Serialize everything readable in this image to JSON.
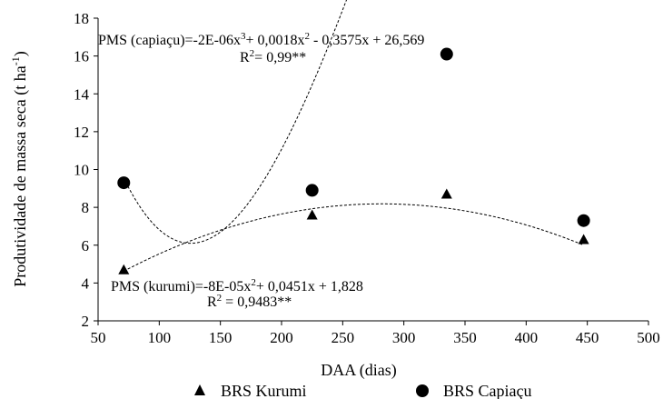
{
  "chart_data": {
    "type": "scatter",
    "xlabel": "DAA (dias)",
    "ylabel": "Produtividade de massa seca (t ha",
    "ylabel_sup": "-1",
    "ylabel_end": ")",
    "xlim": [
      50,
      500
    ],
    "ylim": [
      2,
      18
    ],
    "xticks": [
      50,
      100,
      150,
      200,
      250,
      300,
      350,
      400,
      450,
      500
    ],
    "yticks": [
      2,
      4,
      6,
      8,
      10,
      12,
      14,
      16,
      18
    ],
    "grid": false,
    "legend_position": "bottom",
    "series": [
      {
        "name": "BRS Kurumi",
        "marker": "triangle",
        "x": [
          71,
          225,
          335,
          447
        ],
        "y": [
          4.7,
          7.6,
          8.7,
          6.3
        ],
        "trend": {
          "type": "poly",
          "coef": [
            1.828,
            0.0451,
            -8e-05
          ]
        },
        "equation_parts": [
          "PMS (kurumi)=-8E-05x",
          "2",
          "+ 0,0451x + 1,828"
        ],
        "r2_parts": [
          "R",
          "2",
          " = 0,9483**"
        ]
      },
      {
        "name": "BRS Capiaçu",
        "marker": "circle",
        "x": [
          71,
          225,
          335,
          447
        ],
        "y": [
          9.3,
          8.9,
          16.1,
          7.3
        ],
        "trend": {
          "type": "poly",
          "coef": [
            26.569,
            -0.3575,
            0.0018,
            -2e-06
          ]
        },
        "equation_parts": [
          "PMS (capiaçu)=-2E-06x",
          "3",
          "+ 0,0018x",
          "2",
          " - 0,3575x + 26,569"
        ],
        "r2_parts": [
          "R",
          "2",
          "= 0,99**"
        ]
      }
    ]
  }
}
